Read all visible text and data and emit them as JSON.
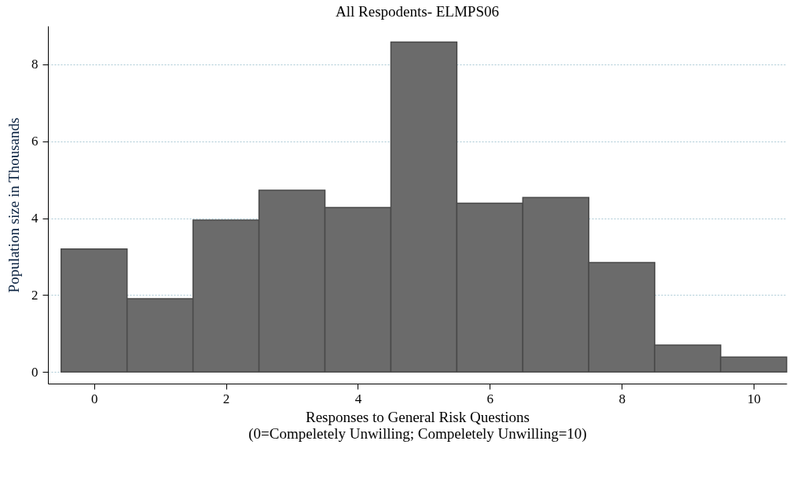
{
  "chart_data": {
    "type": "histogram",
    "title": "All Respodents- ELMPS06",
    "xlabel": "Responses to General Risk Questions\n(0=Compeletely Unwilling; Compeletely Unwilling=10)",
    "ylabel": "Population size in Thousands",
    "bins": [
      -0.5,
      0.5,
      1.5,
      2.5,
      3.5,
      4.5,
      5.5,
      6.5,
      7.5,
      8.5,
      9.5,
      10.5
    ],
    "values": [
      3.2,
      1.91,
      3.95,
      4.73,
      4.28,
      8.58,
      4.39,
      4.54,
      2.85,
      0.7,
      0.39
    ],
    "color": "#6b6b6b",
    "xlim": [
      -0.7,
      10.5
    ],
    "xticks": [
      0,
      2,
      4,
      6,
      8,
      10
    ],
    "ylim": [
      -0.3,
      9
    ],
    "yticks": [
      0,
      2,
      4,
      6,
      8
    ],
    "grid": "y"
  }
}
